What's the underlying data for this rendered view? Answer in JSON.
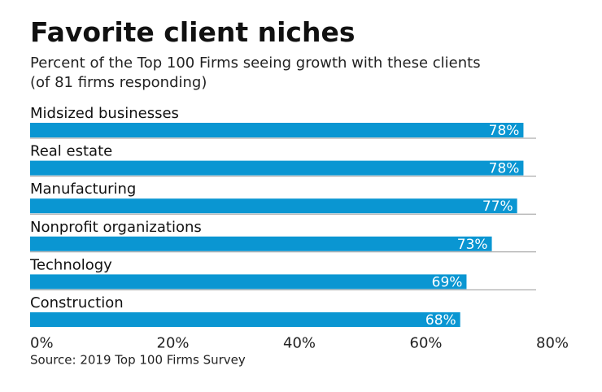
{
  "chart_data": {
    "type": "bar",
    "orientation": "horizontal",
    "title": "Favorite client niches",
    "subtitle": "Percent of the Top 100 Firms seeing growth with these clients (of 81 firms responding)",
    "categories": [
      "Midsized businesses",
      "Real estate",
      "Manufacturing",
      "Nonprofit organizations",
      "Technology",
      "Construction"
    ],
    "values": [
      78,
      78,
      77,
      73,
      69,
      68
    ],
    "value_labels": [
      "78%",
      "78%",
      "77%",
      "73%",
      "69%",
      "68%"
    ],
    "color": "#0a96d2",
    "xlim": [
      0,
      80
    ],
    "xticks": [
      {
        "value": 0,
        "label": "0%"
      },
      {
        "value": 20,
        "label": "20%"
      },
      {
        "value": 40,
        "label": "40%"
      },
      {
        "value": 60,
        "label": "60%"
      },
      {
        "value": 80,
        "label": "80%"
      }
    ],
    "source": "Source: 2019 Top 100 Firms Survey"
  }
}
